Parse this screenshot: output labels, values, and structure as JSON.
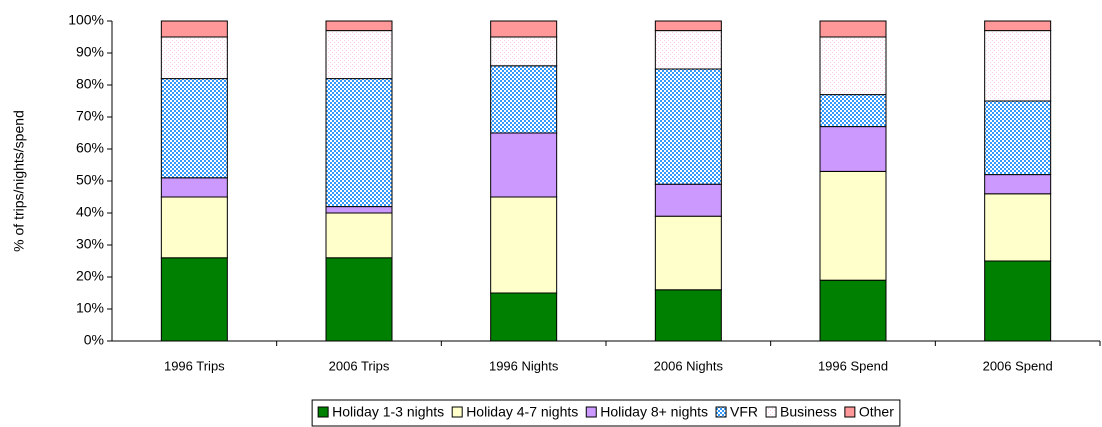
{
  "chart_data": {
    "type": "stacked_bar_100",
    "y_label": "% of trips/nights/spend",
    "categories": [
      "1996 Trips",
      "2006 Trips",
      "1996 Nights",
      "2006 Nights",
      "1996 Spend",
      "2006 Spend"
    ],
    "series": [
      {
        "name": "Holiday 1-3 nights",
        "color": "#008000",
        "values": [
          26,
          26,
          15,
          16,
          19,
          25
        ]
      },
      {
        "name": "Holiday 4-7 nights",
        "color": "#ffffcc",
        "values": [
          19,
          14,
          30,
          23,
          34,
          21
        ]
      },
      {
        "name": "Holiday 8+ nights",
        "color": "#cc99ff",
        "values": [
          6,
          2,
          20,
          10,
          14,
          6
        ]
      },
      {
        "name": "VFR",
        "color": "#3399ff",
        "pattern": "checker",
        "values": [
          31,
          40,
          21,
          36,
          10,
          23
        ]
      },
      {
        "name": "Business",
        "color": "#ffccee",
        "pattern": "dots",
        "values": [
          13,
          15,
          9,
          12,
          18,
          22
        ]
      },
      {
        "name": "Other",
        "color": "#ff9999",
        "values": [
          5,
          3,
          5,
          3,
          5,
          3
        ]
      }
    ],
    "ylim": [
      0,
      100
    ],
    "yticks": [
      {
        "value": 0,
        "label": "0%"
      },
      {
        "value": 10,
        "label": "10%"
      },
      {
        "value": 20,
        "label": "20%"
      },
      {
        "value": 30,
        "label": "30%"
      },
      {
        "value": 40,
        "label": "40%"
      },
      {
        "value": 50,
        "label": "50%"
      },
      {
        "value": 60,
        "label": "60%"
      },
      {
        "value": 70,
        "label": "70%"
      },
      {
        "value": 80,
        "label": "80%"
      },
      {
        "value": 90,
        "label": "90%"
      },
      {
        "value": 100,
        "label": "100%"
      }
    ],
    "legend": "bottom"
  }
}
